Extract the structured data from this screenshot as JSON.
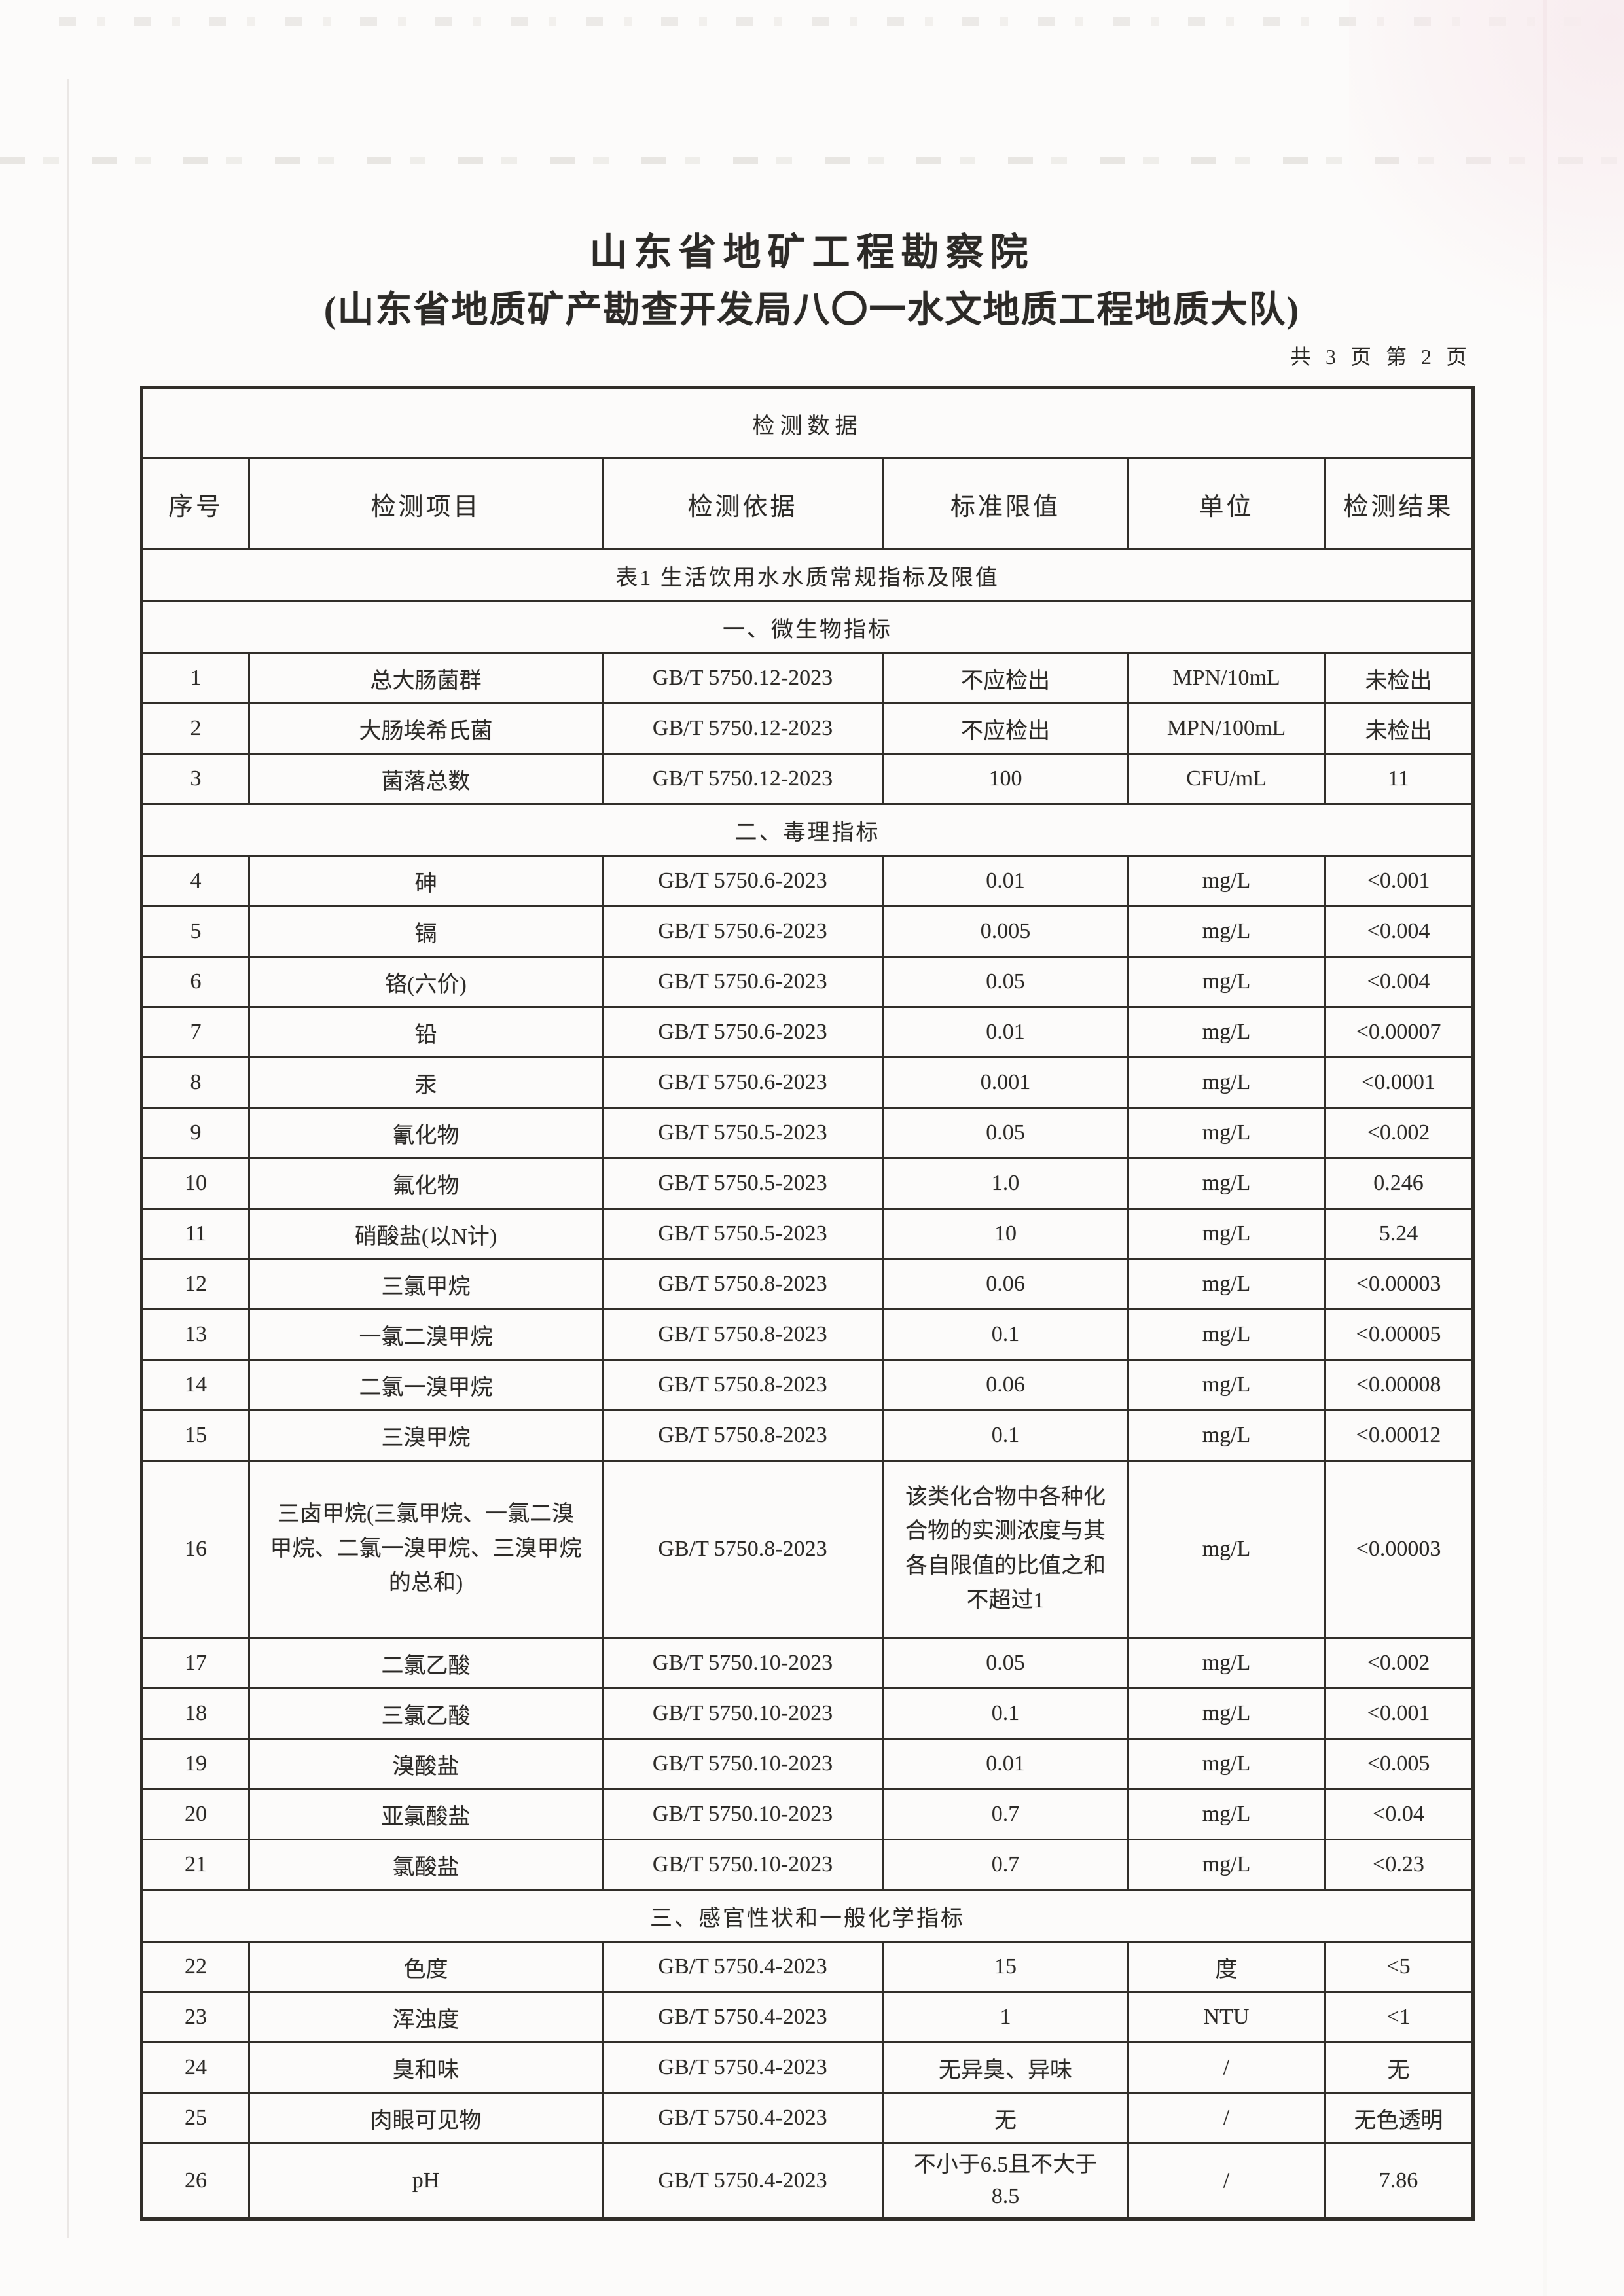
{
  "colors": {
    "paper": "#fcfbfa",
    "ink": "#2c2a27",
    "table_border": "#312e29",
    "scan_tint_pink": "#f8ecef",
    "scan_speckle_gray": "#dedbd7"
  },
  "header": {
    "title": "山东省地矿工程勘察院",
    "subtitle": "(山东省地质矿产勘查开发局八〇一水文地质工程地质大队)",
    "page_info": "共 3 页 第 2 页"
  },
  "table": {
    "header_title": "检测数据",
    "columns": [
      "序号",
      "检测项目",
      "检测依据",
      "标准限值",
      "单位",
      "检测结果"
    ],
    "caption": "表1 生活饮用水水质常规指标及限值",
    "sections": [
      {
        "label": "一、微生物指标",
        "rows": [
          {
            "no": "1",
            "item": "总大肠菌群",
            "method": "GB/T 5750.12-2023",
            "limit": "不应检出",
            "unit": "MPN/10mL",
            "result": "未检出"
          },
          {
            "no": "2",
            "item": "大肠埃希氏菌",
            "method": "GB/T 5750.12-2023",
            "limit": "不应检出",
            "unit": "MPN/100mL",
            "result": "未检出"
          },
          {
            "no": "3",
            "item": "菌落总数",
            "method": "GB/T 5750.12-2023",
            "limit": "100",
            "unit": "CFU/mL",
            "result": "11"
          }
        ]
      },
      {
        "label": "二、毒理指标",
        "rows": [
          {
            "no": "4",
            "item": "砷",
            "method": "GB/T 5750.6-2023",
            "limit": "0.01",
            "unit": "mg/L",
            "result": "<0.001"
          },
          {
            "no": "5",
            "item": "镉",
            "method": "GB/T 5750.6-2023",
            "limit": "0.005",
            "unit": "mg/L",
            "result": "<0.004"
          },
          {
            "no": "6",
            "item": "铬(六价)",
            "method": "GB/T 5750.6-2023",
            "limit": "0.05",
            "unit": "mg/L",
            "result": "<0.004"
          },
          {
            "no": "7",
            "item": "铅",
            "method": "GB/T 5750.6-2023",
            "limit": "0.01",
            "unit": "mg/L",
            "result": "<0.00007"
          },
          {
            "no": "8",
            "item": "汞",
            "method": "GB/T 5750.6-2023",
            "limit": "0.001",
            "unit": "mg/L",
            "result": "<0.0001"
          },
          {
            "no": "9",
            "item": "氰化物",
            "method": "GB/T 5750.5-2023",
            "limit": "0.05",
            "unit": "mg/L",
            "result": "<0.002"
          },
          {
            "no": "10",
            "item": "氟化物",
            "method": "GB/T 5750.5-2023",
            "limit": "1.0",
            "unit": "mg/L",
            "result": "0.246"
          },
          {
            "no": "11",
            "item": "硝酸盐(以N计)",
            "method": "GB/T 5750.5-2023",
            "limit": "10",
            "unit": "mg/L",
            "result": "5.24"
          },
          {
            "no": "12",
            "item": "三氯甲烷",
            "method": "GB/T 5750.8-2023",
            "limit": "0.06",
            "unit": "mg/L",
            "result": "<0.00003"
          },
          {
            "no": "13",
            "item": "一氯二溴甲烷",
            "method": "GB/T 5750.8-2023",
            "limit": "0.1",
            "unit": "mg/L",
            "result": "<0.00005"
          },
          {
            "no": "14",
            "item": "二氯一溴甲烷",
            "method": "GB/T 5750.8-2023",
            "limit": "0.06",
            "unit": "mg/L",
            "result": "<0.00008"
          },
          {
            "no": "15",
            "item": "三溴甲烷",
            "method": "GB/T 5750.8-2023",
            "limit": "0.1",
            "unit": "mg/L",
            "result": "<0.00012"
          },
          {
            "no": "16",
            "item": "三卤甲烷(三氯甲烷、一氯二溴甲烷、二氯一溴甲烷、三溴甲烷的总和)",
            "method": "GB/T 5750.8-2023",
            "limit": "该类化合物中各种化合物的实测浓度与其各自限值的比值之和不超过1",
            "unit": "mg/L",
            "result": "<0.00003",
            "size": "tall"
          },
          {
            "no": "17",
            "item": "二氯乙酸",
            "method": "GB/T 5750.10-2023",
            "limit": "0.05",
            "unit": "mg/L",
            "result": "<0.002"
          },
          {
            "no": "18",
            "item": "三氯乙酸",
            "method": "GB/T 5750.10-2023",
            "limit": "0.1",
            "unit": "mg/L",
            "result": "<0.001"
          },
          {
            "no": "19",
            "item": "溴酸盐",
            "method": "GB/T 5750.10-2023",
            "limit": "0.01",
            "unit": "mg/L",
            "result": "<0.005"
          },
          {
            "no": "20",
            "item": "亚氯酸盐",
            "method": "GB/T 5750.10-2023",
            "limit": "0.7",
            "unit": "mg/L",
            "result": "<0.04"
          },
          {
            "no": "21",
            "item": "氯酸盐",
            "method": "GB/T 5750.10-2023",
            "limit": "0.7",
            "unit": "mg/L",
            "result": "<0.23"
          }
        ]
      },
      {
        "label": "三、感官性状和一般化学指标",
        "rows": [
          {
            "no": "22",
            "item": "色度",
            "method": "GB/T 5750.4-2023",
            "limit": "15",
            "unit": "度",
            "result": "<5"
          },
          {
            "no": "23",
            "item": "浑浊度",
            "method": "GB/T 5750.4-2023",
            "limit": "1",
            "unit": "NTU",
            "result": "<1"
          },
          {
            "no": "24",
            "item": "臭和味",
            "method": "GB/T 5750.4-2023",
            "limit": "无异臭、异味",
            "unit": "/",
            "result": "无"
          },
          {
            "no": "25",
            "item": "肉眼可见物",
            "method": "GB/T 5750.4-2023",
            "limit": "无",
            "unit": "/",
            "result": "无色透明"
          },
          {
            "no": "26",
            "item": "pH",
            "method": "GB/T 5750.4-2023",
            "limit": "不小于6.5且不大于8.5",
            "unit": "/",
            "result": "7.86",
            "size": "xl"
          }
        ]
      }
    ]
  }
}
